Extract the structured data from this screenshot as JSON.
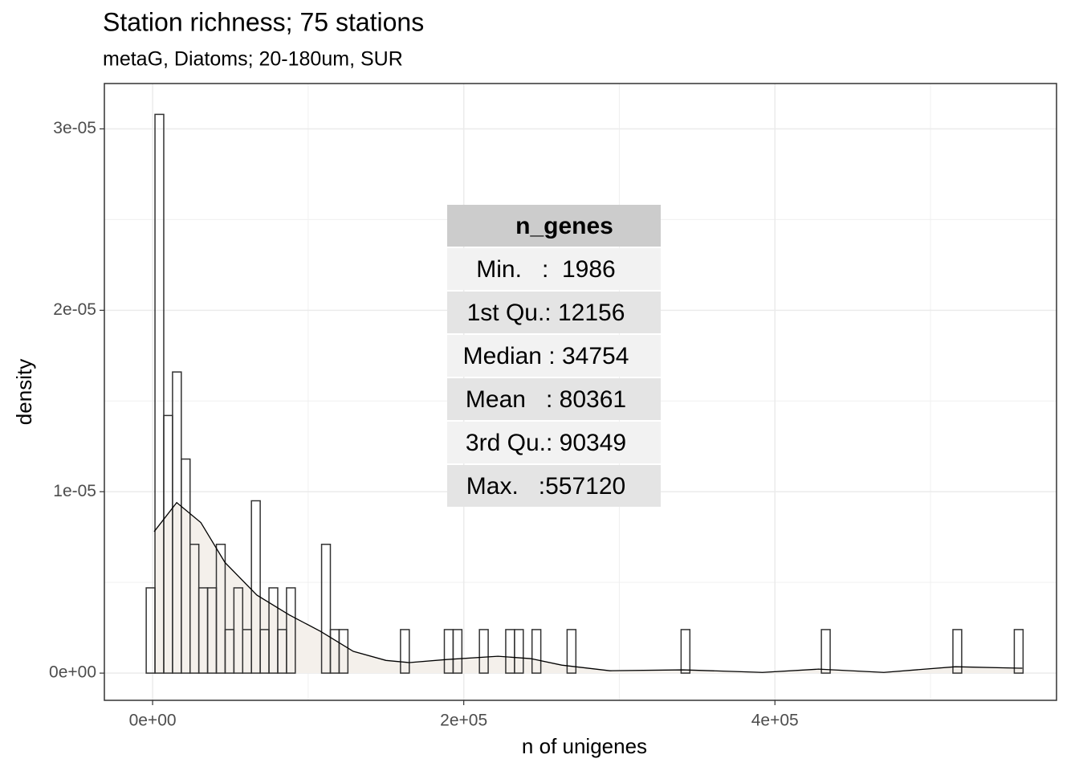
{
  "chart_data": {
    "type": "histogram",
    "title": "Station richness; 75 stations",
    "subtitle": "metaG, Diatoms; 20-180um, SUR",
    "x_label": "n of unigenes",
    "y_label": "density",
    "bins": [
      -4100,
      1536,
      7172,
      12808,
      18444,
      24080,
      29716,
      35352,
      40988,
      46624,
      52260,
      57896,
      63532,
      69168,
      74804,
      80440,
      86076,
      91712,
      97348,
      102984,
      108620,
      114256,
      119892,
      125528,
      131164,
      136800,
      142436,
      148072,
      153708,
      159344,
      164980,
      170616,
      176252,
      181888,
      187524,
      193160,
      198796,
      204432,
      210068,
      215704,
      221340,
      226976,
      232612,
      238248,
      243884,
      249520,
      255156,
      260792,
      266428,
      272064,
      277700,
      283336,
      288972,
      294608,
      300244,
      305880,
      311516,
      317152,
      322788,
      328424,
      334060,
      339696,
      345332,
      350968,
      356604,
      362240,
      367876,
      373512,
      379148,
      384784,
      390420,
      396056,
      401692,
      407328,
      412964,
      418600,
      424236,
      429872,
      435508,
      441144,
      446780,
      452416,
      458052,
      463688,
      469324,
      474960,
      480596,
      486232,
      491868,
      497504,
      503140,
      508776,
      514412,
      520048,
      525684,
      531320,
      536956,
      542592,
      548228,
      553864,
      559500
    ],
    "values": [
      4.7e-06,
      3.08e-05,
      1.42e-05,
      1.66e-05,
      1.18e-05,
      7.1e-06,
      4.7e-06,
      4.7e-06,
      7.1e-06,
      2.4e-06,
      4.7e-06,
      2.4e-06,
      9.5e-06,
      2.4e-06,
      4.7e-06,
      2.4e-06,
      4.7e-06,
      0,
      0,
      0,
      7.1e-06,
      2.4e-06,
      2.4e-06,
      0,
      0,
      0,
      0,
      0,
      0,
      2.4e-06,
      0,
      0,
      0,
      0,
      2.4e-06,
      2.4e-06,
      0,
      0,
      2.4e-06,
      0,
      0,
      2.4e-06,
      2.4e-06,
      0,
      2.4e-06,
      0,
      0,
      0,
      2.4e-06,
      0,
      0,
      0,
      0,
      0,
      0,
      0,
      0,
      0,
      0,
      0,
      0,
      2.4e-06,
      0,
      0,
      0,
      0,
      0,
      0,
      0,
      0,
      0,
      0,
      0,
      0,
      0,
      0,
      0,
      2.4e-06,
      0,
      0,
      0,
      0,
      0,
      0,
      0,
      0,
      0,
      0,
      0,
      0,
      0,
      0,
      2.4e-06,
      0,
      0,
      0,
      0,
      0,
      0,
      2.4e-06
    ],
    "color": "#333333",
    "density": {
      "x": [
        1000,
        15500,
        31000,
        46500,
        67000,
        88000,
        108000,
        129000,
        150000,
        165000,
        189000,
        222000,
        243000,
        263000,
        294000,
        341000,
        392000,
        428000,
        470000,
        516000,
        559000
      ],
      "values": [
        7.8e-06,
        9.4e-06,
        8.3e-06,
        6.1e-06,
        4.3e-06,
        3.2e-06,
        2.3e-06,
        1.2e-06,
        7e-07,
        5.8e-07,
        7.5e-07,
        9.3e-07,
        8e-07,
        4.4e-07,
        1.3e-07,
        1.8e-07,
        4e-08,
        2.2e-07,
        4e-08,
        3.5e-07,
        2.7e-07
      ],
      "color": "#000000",
      "fill": "#f4f0eb"
    },
    "xlim": [
      -31000,
      581000
    ],
    "ylim": [
      -1.5e-06,
      3.25e-05
    ],
    "xticks": [
      {
        "value": 0,
        "label": "0e+00"
      },
      {
        "value": 200000,
        "label": "2e+05"
      },
      {
        "value": 400000,
        "label": "4e+05"
      }
    ],
    "yticks": [
      {
        "value": 0,
        "label": "0e+00"
      },
      {
        "value": 1e-05,
        "label": "1e-05"
      },
      {
        "value": 2e-05,
        "label": "2e-05"
      },
      {
        "value": 3e-05,
        "label": "3e-05"
      }
    ],
    "xminor": [
      100000,
      300000,
      500000
    ],
    "yminor": [
      5e-06,
      1.5e-05,
      2.5e-05
    ],
    "grid": true,
    "table": {
      "header": "n_genes",
      "rows": [
        "Min.   :  1986",
        "1st Qu.: 12156",
        "Median : 34754",
        "Mean   : 80361",
        "3rd Qu.: 90349",
        "Max.   :557120"
      ]
    }
  }
}
